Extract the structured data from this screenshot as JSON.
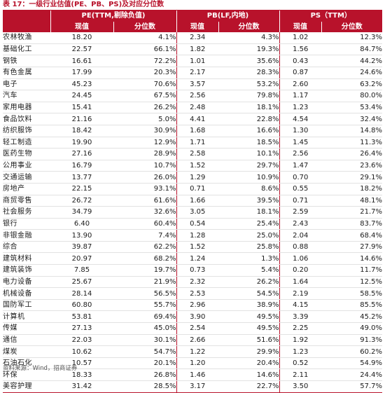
{
  "title": "表 17：一级行业估值(PE、PB、PS)及对应分位数",
  "headers": {
    "pe_group": "PE(TTM,剔除负值)",
    "pb_group": "PB(LF,内地)",
    "ps_group": "PS（TTM）",
    "current": "现值",
    "percentile": "分位数"
  },
  "rows": [
    {
      "industry": "农林牧渔",
      "pe": "18.20",
      "pe_pct": "4.1%",
      "pb": "2.34",
      "pb_pct": "4.3%",
      "ps": "1.02",
      "ps_pct": "12.3%"
    },
    {
      "industry": "基础化工",
      "pe": "22.57",
      "pe_pct": "66.1%",
      "pb": "1.82",
      "pb_pct": "19.3%",
      "ps": "1.56",
      "ps_pct": "84.7%"
    },
    {
      "industry": "钢铁",
      "pe": "16.61",
      "pe_pct": "72.2%",
      "pb": "1.01",
      "pb_pct": "35.6%",
      "ps": "0.43",
      "ps_pct": "44.2%"
    },
    {
      "industry": "有色金属",
      "pe": "17.99",
      "pe_pct": "20.3%",
      "pb": "2.17",
      "pb_pct": "28.3%",
      "ps": "0.87",
      "ps_pct": "24.6%"
    },
    {
      "industry": "电子",
      "pe": "45.23",
      "pe_pct": "70.6%",
      "pb": "3.57",
      "pb_pct": "53.2%",
      "ps": "2.60",
      "ps_pct": "63.2%"
    },
    {
      "industry": "汽车",
      "pe": "24.45",
      "pe_pct": "67.5%",
      "pb": "2.56",
      "pb_pct": "79.8%",
      "ps": "1.17",
      "ps_pct": "80.0%"
    },
    {
      "industry": "家用电器",
      "pe": "15.41",
      "pe_pct": "26.2%",
      "pb": "2.48",
      "pb_pct": "18.1%",
      "ps": "1.23",
      "ps_pct": "53.4%"
    },
    {
      "industry": "食品饮料",
      "pe": "21.16",
      "pe_pct": "5.0%",
      "pb": "4.41",
      "pb_pct": "22.8%",
      "ps": "4.54",
      "ps_pct": "32.4%"
    },
    {
      "industry": "纺织服饰",
      "pe": "18.42",
      "pe_pct": "30.9%",
      "pb": "1.68",
      "pb_pct": "16.6%",
      "ps": "1.30",
      "ps_pct": "14.8%"
    },
    {
      "industry": "轻工制造",
      "pe": "19.90",
      "pe_pct": "12.9%",
      "pb": "1.71",
      "pb_pct": "18.5%",
      "ps": "1.45",
      "ps_pct": "11.3%"
    },
    {
      "industry": "医药生物",
      "pe": "27.16",
      "pe_pct": "28.9%",
      "pb": "2.58",
      "pb_pct": "10.1%",
      "ps": "2.56",
      "ps_pct": "26.4%"
    },
    {
      "industry": "公用事业",
      "pe": "16.79",
      "pe_pct": "10.7%",
      "pb": "1.52",
      "pb_pct": "29.7%",
      "ps": "1.47",
      "ps_pct": "23.6%"
    },
    {
      "industry": "交通运输",
      "pe": "13.77",
      "pe_pct": "26.0%",
      "pb": "1.29",
      "pb_pct": "10.9%",
      "ps": "0.70",
      "ps_pct": "29.1%"
    },
    {
      "industry": "房地产",
      "pe": "22.15",
      "pe_pct": "93.1%",
      "pb": "0.71",
      "pb_pct": "8.6%",
      "ps": "0.55",
      "ps_pct": "18.2%"
    },
    {
      "industry": "商贸零售",
      "pe": "26.72",
      "pe_pct": "61.6%",
      "pb": "1.66",
      "pb_pct": "39.5%",
      "ps": "0.71",
      "ps_pct": "48.1%"
    },
    {
      "industry": "社会服务",
      "pe": "34.79",
      "pe_pct": "32.6%",
      "pb": "3.05",
      "pb_pct": "18.1%",
      "ps": "2.59",
      "ps_pct": "21.7%"
    },
    {
      "industry": "银行",
      "pe": "6.40",
      "pe_pct": "60.4%",
      "pb": "0.54",
      "pb_pct": "25.4%",
      "ps": "2.43",
      "ps_pct": "83.7%"
    },
    {
      "industry": "非银金融",
      "pe": "13.90",
      "pe_pct": "7.4%",
      "pb": "1.28",
      "pb_pct": "25.0%",
      "ps": "2.04",
      "ps_pct": "68.4%"
    },
    {
      "industry": "综合",
      "pe": "39.87",
      "pe_pct": "62.2%",
      "pb": "1.52",
      "pb_pct": "25.8%",
      "ps": "0.88",
      "ps_pct": "27.9%"
    },
    {
      "industry": "建筑材料",
      "pe": "20.97",
      "pe_pct": "68.2%",
      "pb": "1.24",
      "pb_pct": "1.3%",
      "ps": "1.06",
      "ps_pct": "14.6%"
    },
    {
      "industry": "建筑装饰",
      "pe": "7.85",
      "pe_pct": "19.7%",
      "pb": "0.73",
      "pb_pct": "5.4%",
      "ps": "0.20",
      "ps_pct": "11.7%"
    },
    {
      "industry": "电力设备",
      "pe": "25.67",
      "pe_pct": "21.9%",
      "pb": "2.32",
      "pb_pct": "26.2%",
      "ps": "1.64",
      "ps_pct": "12.5%"
    },
    {
      "industry": "机械设备",
      "pe": "28.14",
      "pe_pct": "56.5%",
      "pb": "2.53",
      "pb_pct": "54.5%",
      "ps": "2.19",
      "ps_pct": "58.5%"
    },
    {
      "industry": "国防军工",
      "pe": "60.80",
      "pe_pct": "55.7%",
      "pb": "2.96",
      "pb_pct": "38.9%",
      "ps": "4.15",
      "ps_pct": "85.5%"
    },
    {
      "industry": "计算机",
      "pe": "53.81",
      "pe_pct": "69.4%",
      "pb": "3.90",
      "pb_pct": "49.5%",
      "ps": "3.39",
      "ps_pct": "45.2%"
    },
    {
      "industry": "传媒",
      "pe": "27.13",
      "pe_pct": "45.0%",
      "pb": "2.54",
      "pb_pct": "49.5%",
      "ps": "2.25",
      "ps_pct": "49.0%"
    },
    {
      "industry": "通信",
      "pe": "22.03",
      "pe_pct": "30.1%",
      "pb": "2.66",
      "pb_pct": "51.6%",
      "ps": "1.92",
      "ps_pct": "91.3%"
    },
    {
      "industry": "煤炭",
      "pe": "10.62",
      "pe_pct": "54.7%",
      "pb": "1.22",
      "pb_pct": "29.9%",
      "ps": "1.23",
      "ps_pct": "60.2%"
    },
    {
      "industry": "石油石化",
      "pe": "10.57",
      "pe_pct": "20.1%",
      "pb": "1.20",
      "pb_pct": "20.4%",
      "ps": "0.52",
      "ps_pct": "54.9%"
    },
    {
      "industry": "环保",
      "pe": "18.33",
      "pe_pct": "26.8%",
      "pb": "1.46",
      "pb_pct": "14.6%",
      "ps": "2.11",
      "ps_pct": "24.4%"
    },
    {
      "industry": "美容护理",
      "pe": "31.42",
      "pe_pct": "28.5%",
      "pb": "3.17",
      "pb_pct": "22.7%",
      "ps": "3.50",
      "ps_pct": "57.7%"
    }
  ],
  "footnote": "资料来源：Wind，招商证券"
}
